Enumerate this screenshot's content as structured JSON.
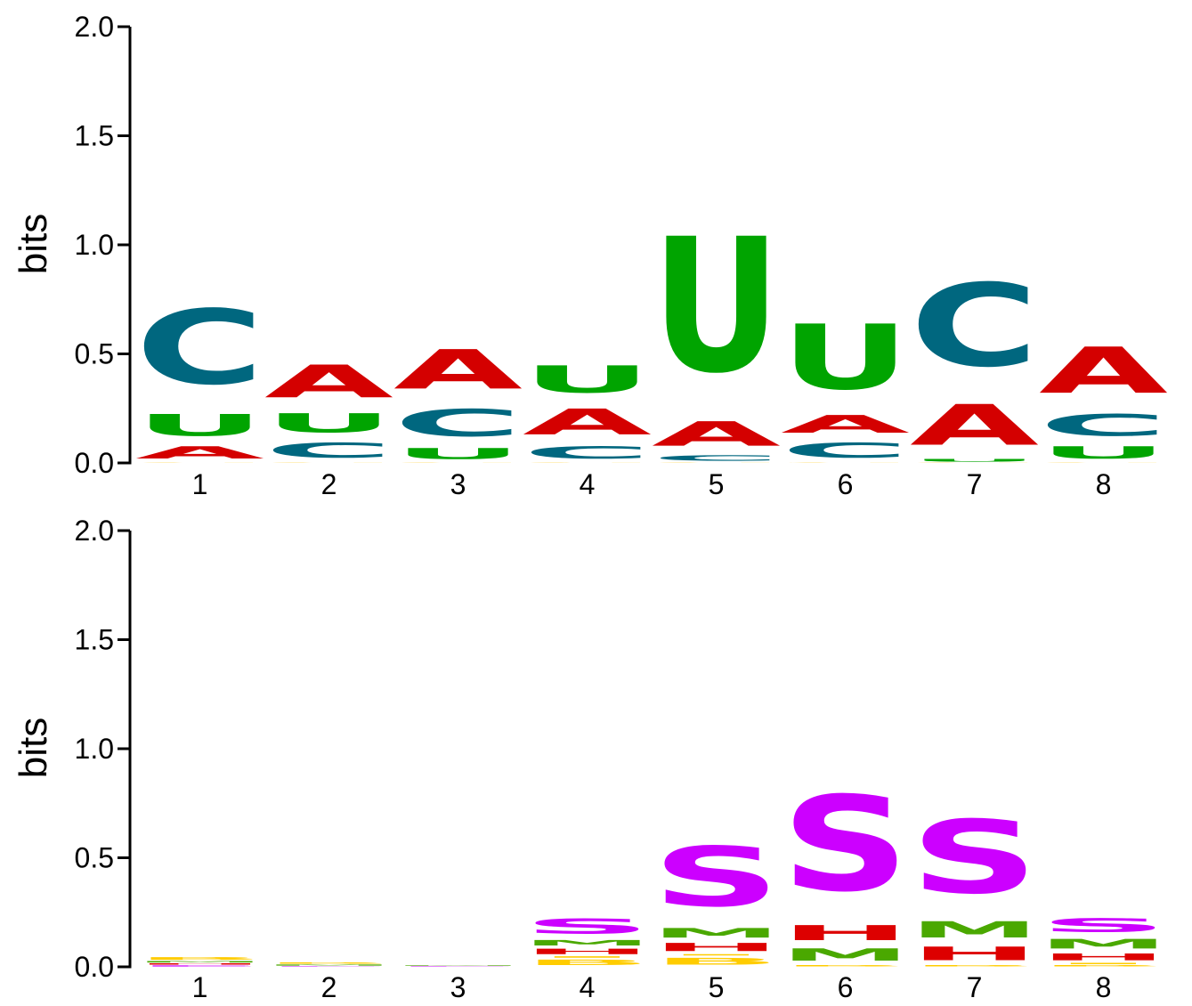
{
  "chart_data": [
    {
      "type": "sequence-logo",
      "alphabet": "RNA",
      "ylabel": "bits",
      "ylim": [
        0,
        2
      ],
      "yticks": [
        "0.0",
        "0.5",
        "1.0",
        "1.5",
        "2.0"
      ],
      "positions": [
        "1",
        "2",
        "3",
        "4",
        "5",
        "6",
        "7",
        "8"
      ],
      "colors": {
        "A": "#d40000",
        "C": "#00677f",
        "G": "#ffc200",
        "U": "#00a400"
      },
      "stacks": [
        [
          {
            "letter": "G",
            "bits": 0.002
          },
          {
            "letter": "A",
            "bits": 0.09
          },
          {
            "letter": "U",
            "bits": 0.16
          },
          {
            "letter": "C",
            "bits": 0.55
          }
        ],
        [
          {
            "letter": "G",
            "bits": 0.002
          },
          {
            "letter": "C",
            "bits": 0.11
          },
          {
            "letter": "U",
            "bits": 0.14
          },
          {
            "letter": "A",
            "bits": 0.24
          }
        ],
        [
          {
            "letter": "G",
            "bits": 0.002
          },
          {
            "letter": "U",
            "bits": 0.08
          },
          {
            "letter": "C",
            "bits": 0.2
          },
          {
            "letter": "A",
            "bits": 0.29
          }
        ],
        [
          {
            "letter": "G",
            "bits": 0.002
          },
          {
            "letter": "C",
            "bits": 0.09
          },
          {
            "letter": "A",
            "bits": 0.19
          },
          {
            "letter": "U",
            "bits": 0.2
          }
        ],
        [
          {
            "letter": "G",
            "bits": 0.002
          },
          {
            "letter": "C",
            "bits": 0.04
          },
          {
            "letter": "A",
            "bits": 0.18
          },
          {
            "letter": "U",
            "bits": 0.99
          }
        ],
        [
          {
            "letter": "G",
            "bits": 0.002
          },
          {
            "letter": "C",
            "bits": 0.11
          },
          {
            "letter": "A",
            "bits": 0.13
          },
          {
            "letter": "U",
            "bits": 0.48
          }
        ],
        [
          {
            "letter": "G",
            "bits": 0.002
          },
          {
            "letter": "U",
            "bits": 0.02
          },
          {
            "letter": "A",
            "bits": 0.3
          },
          {
            "letter": "C",
            "bits": 0.61
          }
        ],
        [
          {
            "letter": "G",
            "bits": 0.002
          },
          {
            "letter": "U",
            "bits": 0.09
          },
          {
            "letter": "C",
            "bits": 0.16
          },
          {
            "letter": "A",
            "bits": 0.34
          }
        ]
      ]
    },
    {
      "type": "sequence-logo",
      "alphabet": "structure",
      "ylabel": "bits",
      "ylim": [
        0,
        2
      ],
      "yticks": [
        "0.0",
        "0.5",
        "1.0",
        "1.5",
        "2.0"
      ],
      "positions": [
        "1",
        "2",
        "3",
        "4",
        "5",
        "6",
        "7",
        "8"
      ],
      "colors": {
        "S": "#cc00ff",
        "M": "#4aa800",
        "H": "#dd0000",
        "B": "#ffcc00",
        "I": "#ffcc00",
        "E": "#cc00ff"
      },
      "stacks": [
        [
          {
            "letter": "E",
            "bits": 0.008
          },
          {
            "letter": "H",
            "bits": 0.01
          },
          {
            "letter": "M",
            "bits": 0.01
          },
          {
            "letter": "B",
            "bits": 0.02
          }
        ],
        [
          {
            "letter": "E",
            "bits": 0.004
          },
          {
            "letter": "M",
            "bits": 0.008
          },
          {
            "letter": "B",
            "bits": 0.01
          }
        ],
        [
          {
            "letter": "E",
            "bits": 0.004
          },
          {
            "letter": "M",
            "bits": 0.004
          }
        ],
        [
          {
            "letter": "B",
            "bits": 0.04
          },
          {
            "letter": "I",
            "bits": 0.01
          },
          {
            "letter": "H",
            "bits": 0.04
          },
          {
            "letter": "M",
            "bits": 0.04
          },
          {
            "letter": "S",
            "bits": 0.11
          }
        ],
        [
          {
            "letter": "B",
            "bits": 0.05
          },
          {
            "letter": "I",
            "bits": 0.01
          },
          {
            "letter": "H",
            "bits": 0.06
          },
          {
            "letter": "M",
            "bits": 0.07
          },
          {
            "letter": "S",
            "bits": 0.44
          }
        ],
        [
          {
            "letter": "B",
            "bits": 0.01
          },
          {
            "letter": "M",
            "bits": 0.09
          },
          {
            "letter": "H",
            "bits": 0.11
          },
          {
            "letter": "S",
            "bits": 0.7
          }
        ],
        [
          {
            "letter": "B",
            "bits": 0.01
          },
          {
            "letter": "H",
            "bits": 0.1
          },
          {
            "letter": "M",
            "bits": 0.12
          },
          {
            "letter": "S",
            "bits": 0.54
          }
        ],
        [
          {
            "letter": "B",
            "bits": 0.01
          },
          {
            "letter": "I",
            "bits": 0.01
          },
          {
            "letter": "H",
            "bits": 0.05
          },
          {
            "letter": "M",
            "bits": 0.07
          },
          {
            "letter": "S",
            "bits": 0.1
          }
        ]
      ]
    }
  ]
}
